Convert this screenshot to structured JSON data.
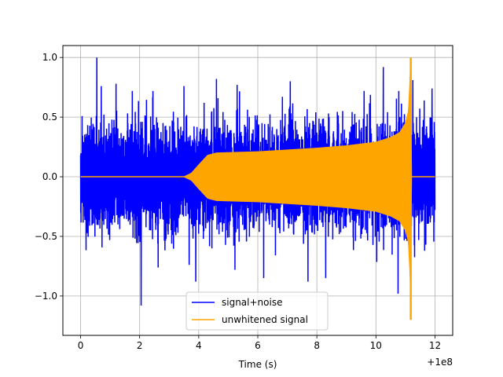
{
  "chart_data": {
    "type": "line",
    "title": "",
    "xlabel": "Time (s)",
    "ylabel": "",
    "x_offset_label": "+1e8",
    "xlim": [
      -0.6,
      12.6
    ],
    "ylim": [
      -1.33,
      1.1
    ],
    "grid": true,
    "legend": {
      "placement": "lower center"
    },
    "x_ticks": [
      0,
      2,
      4,
      6,
      8,
      10,
      12
    ],
    "x_tick_labels": [
      "0",
      "2",
      "4",
      "6",
      "8",
      "10",
      "12"
    ],
    "y_ticks": [
      -1.0,
      -0.5,
      0.0,
      0.5,
      1.0
    ],
    "y_tick_labels": [
      "−1.0",
      "−0.5",
      "0.0",
      "0.5",
      "1.0"
    ],
    "series": [
      {
        "name": "signal+noise",
        "color": "#0000ff",
        "kind": "noise",
        "x_range": [
          0,
          12
        ],
        "typical_amplitude": 0.45,
        "peaks": [
          {
            "x": 0.55,
            "y": 1.0
          },
          {
            "x": 0.7,
            "y": 0.76
          },
          {
            "x": 1.2,
            "y": 0.78
          },
          {
            "x": 2.05,
            "y": -1.08
          },
          {
            "x": 2.45,
            "y": 0.72
          },
          {
            "x": 3.5,
            "y": 0.76
          },
          {
            "x": 3.9,
            "y": -0.88
          },
          {
            "x": 4.6,
            "y": 0.82
          },
          {
            "x": 5.3,
            "y": 0.77
          },
          {
            "x": 6.2,
            "y": -0.85
          },
          {
            "x": 7.1,
            "y": 0.8
          },
          {
            "x": 7.7,
            "y": -0.88
          },
          {
            "x": 8.3,
            "y": -0.85
          },
          {
            "x": 9.6,
            "y": 0.72
          },
          {
            "x": 10.25,
            "y": 0.92
          },
          {
            "x": 10.75,
            "y": -0.98
          },
          {
            "x": 11.25,
            "y": 0.81
          },
          {
            "x": 11.65,
            "y": -0.62
          },
          {
            "x": 11.9,
            "y": 0.74
          }
        ]
      },
      {
        "name": "unwhitened signal",
        "color": "#ffa500",
        "kind": "chirp",
        "x_range": [
          0,
          12
        ],
        "envelope": [
          {
            "x": 0.0,
            "y": 0.0
          },
          {
            "x": 3.5,
            "y": 0.0
          },
          {
            "x": 3.75,
            "y": 0.03
          },
          {
            "x": 4.0,
            "y": 0.1
          },
          {
            "x": 4.3,
            "y": 0.18
          },
          {
            "x": 4.6,
            "y": 0.2
          },
          {
            "x": 6.0,
            "y": 0.21
          },
          {
            "x": 8.0,
            "y": 0.24
          },
          {
            "x": 9.0,
            "y": 0.26
          },
          {
            "x": 10.0,
            "y": 0.29
          },
          {
            "x": 10.5,
            "y": 0.33
          },
          {
            "x": 10.8,
            "y": 0.37
          },
          {
            "x": 11.0,
            "y": 0.45
          },
          {
            "x": 11.1,
            "y": 0.55
          },
          {
            "x": 11.15,
            "y": 0.8
          },
          {
            "x": 11.18,
            "y": 1.0
          },
          {
            "x": 11.2,
            "y": 0.0
          },
          {
            "x": 12.0,
            "y": 0.0
          }
        ],
        "peak_max": 1.0,
        "peak_min": -1.2,
        "peak_x": 11.18
      }
    ]
  }
}
